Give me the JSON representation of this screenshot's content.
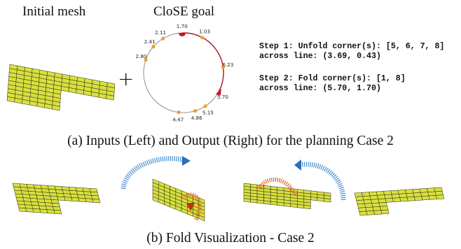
{
  "headers": {
    "initial_mesh": "Initial mesh",
    "close_goal": "CloSE goal"
  },
  "operator": "+",
  "close_goal": {
    "points": [
      {
        "label": "1.70",
        "angle": 92,
        "color": "#d0102a",
        "shape": "semicircle"
      },
      {
        "label": "1.03",
        "angle": 62,
        "color": "#f0a020",
        "shape": "dot"
      },
      {
        "label": "2.11",
        "angle": 121,
        "color": "#f0a020",
        "shape": "dot"
      },
      {
        "label": "2.41",
        "angle": 139,
        "color": "#f0a020",
        "shape": "dot"
      },
      {
        "label": "2.80",
        "angle": 161,
        "color": "#f0a020",
        "shape": "dot"
      },
      {
        "label": "6.23",
        "angle": 8,
        "color": "#f0a020",
        "shape": "dot"
      },
      {
        "label": "5.70",
        "angle": -29,
        "color": "#d0102a",
        "shape": "triangle"
      },
      {
        "label": "5.15",
        "angle": -57,
        "color": "#f0a020",
        "shape": "dot"
      },
      {
        "label": "4.86",
        "angle": -73,
        "color": "#f0a020",
        "shape": "dot"
      },
      {
        "label": "4.47",
        "angle": -97,
        "color": "#f0a020",
        "shape": "dot"
      }
    ],
    "arc_color": "#b01828",
    "circle_color": "#999999"
  },
  "steps": {
    "step1_line1": "Step 1: Unfold corner(s): [5, 6, 7, 8]",
    "step1_line2": "across line: (3.69, 0.43)",
    "step2_line1": "Step 2: Fold corner(s): [1, 8]",
    "step2_line2": "across line: (5.70, 1.70)"
  },
  "caption_a": "(a) Inputs (Left) and Output (Right) for the planning Case 2",
  "caption_b": "(b) Fold Visualization - Case 2",
  "colors": {
    "mesh_fill": "#d8e040",
    "mesh_edge": "#2a2a10",
    "arrow_blue": "#4a90d0",
    "arrow_orange": "#e86020"
  }
}
